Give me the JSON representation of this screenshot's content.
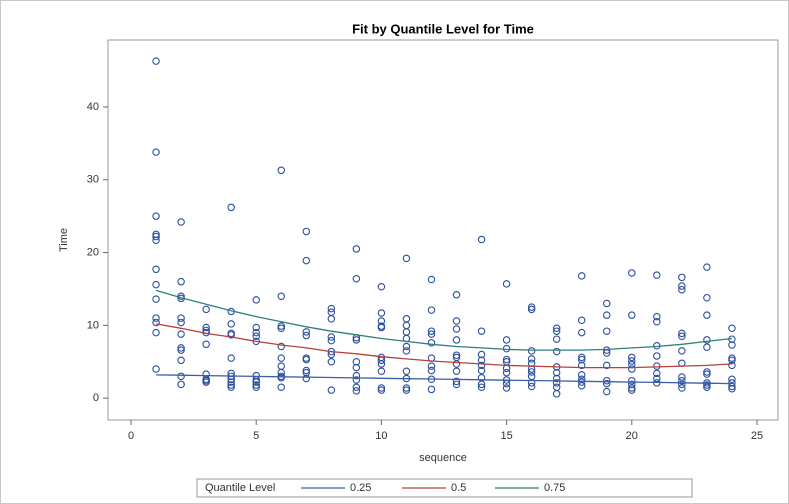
{
  "chart_data": {
    "type": "scatter",
    "title": "Fit by Quantile Level for Time",
    "x_label": "sequence",
    "y_label": "Time",
    "xlim": [
      -0.92,
      25.84
    ],
    "ylim": [
      -3,
      49.2
    ],
    "xticks": [
      0,
      5,
      10,
      15,
      20,
      25
    ],
    "yticks": [
      0,
      10,
      20,
      30,
      40
    ],
    "point_color": "#2b4f9e",
    "groups": [
      {
        "x": 1,
        "y": [
          46.3,
          33.8,
          25,
          22.5,
          22.2,
          21.7,
          17.7,
          15.6,
          13.6,
          11,
          10.4,
          9,
          4
        ]
      },
      {
        "x": 2,
        "y": [
          24.2,
          16,
          14,
          13.7,
          11,
          10.4,
          8.8,
          6.9,
          6.6,
          5.2,
          3,
          1.9
        ]
      },
      {
        "x": 3,
        "y": [
          12.2,
          9.7,
          9.3,
          9,
          7.4,
          3.3,
          2.6,
          2.4,
          2.2
        ]
      },
      {
        "x": 4,
        "y": [
          26.2,
          11.9,
          10.2,
          8.9,
          8.7,
          5.5,
          3.4,
          3,
          2.6,
          2.2,
          1.8,
          1.5
        ]
      },
      {
        "x": 5,
        "y": [
          13.5,
          9.7,
          9,
          8.5,
          7.8,
          3.1,
          2.5,
          2.2,
          1.8,
          1.5
        ]
      },
      {
        "x": 6,
        "y": [
          31.3,
          14,
          9.9,
          9.6,
          7.1,
          5.5,
          4.4,
          3.5,
          3,
          2.8,
          1.5
        ]
      },
      {
        "x": 7,
        "y": [
          22.9,
          18.9,
          9.1,
          8.6,
          5.5,
          5.3,
          3.8,
          3.5,
          2.7
        ]
      },
      {
        "x": 8,
        "y": [
          12.3,
          11.8,
          10.9,
          8.4,
          7.9,
          6.4,
          6,
          5,
          1.1
        ]
      },
      {
        "x": 9,
        "y": [
          20.5,
          16.4,
          8.3,
          8,
          5,
          4.2,
          3.1,
          2.5,
          1.5,
          1
        ]
      },
      {
        "x": 10,
        "y": [
          15.3,
          11.7,
          10.6,
          9.9,
          9.7,
          5.6,
          5.2,
          4.7,
          3.7,
          1.4,
          1.1
        ]
      },
      {
        "x": 11,
        "y": [
          19.2,
          10.9,
          10,
          9.1,
          8.2,
          7.1,
          6.5,
          3.7,
          2.7,
          1.4,
          1.1
        ]
      },
      {
        "x": 12,
        "y": [
          16.3,
          12.1,
          9.2,
          8.8,
          7.6,
          5.5,
          4.4,
          3.8,
          2.6,
          1.2
        ]
      },
      {
        "x": 13,
        "y": [
          14.2,
          10.6,
          9.5,
          8,
          5.9,
          5.6,
          4.7,
          3.7,
          2.3,
          1.9
        ]
      },
      {
        "x": 14,
        "y": [
          21.8,
          9.2,
          6,
          5.2,
          4.5,
          3.8,
          2.8,
          1.9,
          1.5
        ]
      },
      {
        "x": 15,
        "y": [
          15.7,
          8,
          6.8,
          5.3,
          5,
          4.1,
          3.5,
          2.5,
          2,
          1.4
        ]
      },
      {
        "x": 16,
        "y": [
          12.5,
          12.2,
          6.5,
          5.4,
          4.8,
          4,
          3.6,
          3,
          2.1,
          1.6
        ]
      },
      {
        "x": 17,
        "y": [
          9.6,
          9.2,
          8.1,
          6.4,
          4.3,
          3.5,
          2.7,
          2.1,
          1.5,
          0.6
        ]
      },
      {
        "x": 18,
        "y": [
          16.8,
          10.7,
          9,
          5.6,
          5.3,
          4.5,
          3.2,
          2.6,
          2.2,
          1.7
        ]
      },
      {
        "x": 19,
        "y": [
          13,
          11.4,
          9.2,
          6.6,
          6.2,
          4.5,
          2.4,
          2,
          0.9
        ]
      },
      {
        "x": 20,
        "y": [
          17.2,
          11.4,
          5.6,
          5.1,
          4.6,
          4,
          2.4,
          1.9,
          1.4,
          1.1
        ]
      },
      {
        "x": 21,
        "y": [
          16.9,
          11.2,
          10.5,
          7.2,
          5.8,
          4.4,
          3.4,
          2.7,
          2.1
        ]
      },
      {
        "x": 22,
        "y": [
          16.6,
          15.4,
          14.9,
          8.9,
          8.5,
          6.5,
          4.8,
          2.9,
          2.4,
          1.9,
          1.4
        ]
      },
      {
        "x": 23,
        "y": [
          18,
          13.8,
          11.4,
          8,
          7,
          3.6,
          3.3,
          2.1,
          1.8,
          1.5
        ]
      },
      {
        "x": 24,
        "y": [
          9.6,
          8.1,
          7.3,
          5.5,
          5.2,
          4.5,
          2.6,
          2.1,
          1.6,
          1.3
        ]
      }
    ],
    "legend_title": "Quantile Level",
    "fit_x": [
      1,
      2,
      3,
      4,
      5,
      6,
      7,
      8,
      9,
      10,
      11,
      12,
      13,
      14,
      15,
      16,
      17,
      18,
      19,
      20,
      21,
      22,
      23,
      24
    ],
    "series": [
      {
        "name": "0.25",
        "color": "#3a5ea8",
        "values": [
          3.2,
          3.15,
          3.1,
          3.04,
          2.99,
          2.94,
          2.89,
          2.84,
          2.78,
          2.73,
          2.68,
          2.63,
          2.58,
          2.52,
          2.47,
          2.42,
          2.37,
          2.32,
          2.26,
          2.21,
          2.16,
          2.11,
          2.06,
          2.0
        ]
      },
      {
        "name": "0.5",
        "color": "#b5413a",
        "values": [
          10.2,
          9.6,
          8.9,
          8.4,
          7.8,
          7.3,
          6.9,
          6.4,
          6.1,
          5.7,
          5.4,
          5.1,
          4.9,
          4.7,
          4.5,
          4.4,
          4.3,
          4.2,
          4.2,
          4.2,
          4.3,
          4.4,
          4.5,
          4.7
        ]
      },
      {
        "name": "0.75",
        "color": "#2f7f7a",
        "values": [
          14.8,
          13.8,
          12.9,
          12.0,
          11.2,
          10.5,
          9.8,
          9.2,
          8.7,
          8.2,
          7.8,
          7.4,
          7.1,
          6.9,
          6.7,
          6.6,
          6.6,
          6.6,
          6.7,
          6.9,
          7.1,
          7.4,
          7.8,
          8.2
        ]
      }
    ]
  }
}
